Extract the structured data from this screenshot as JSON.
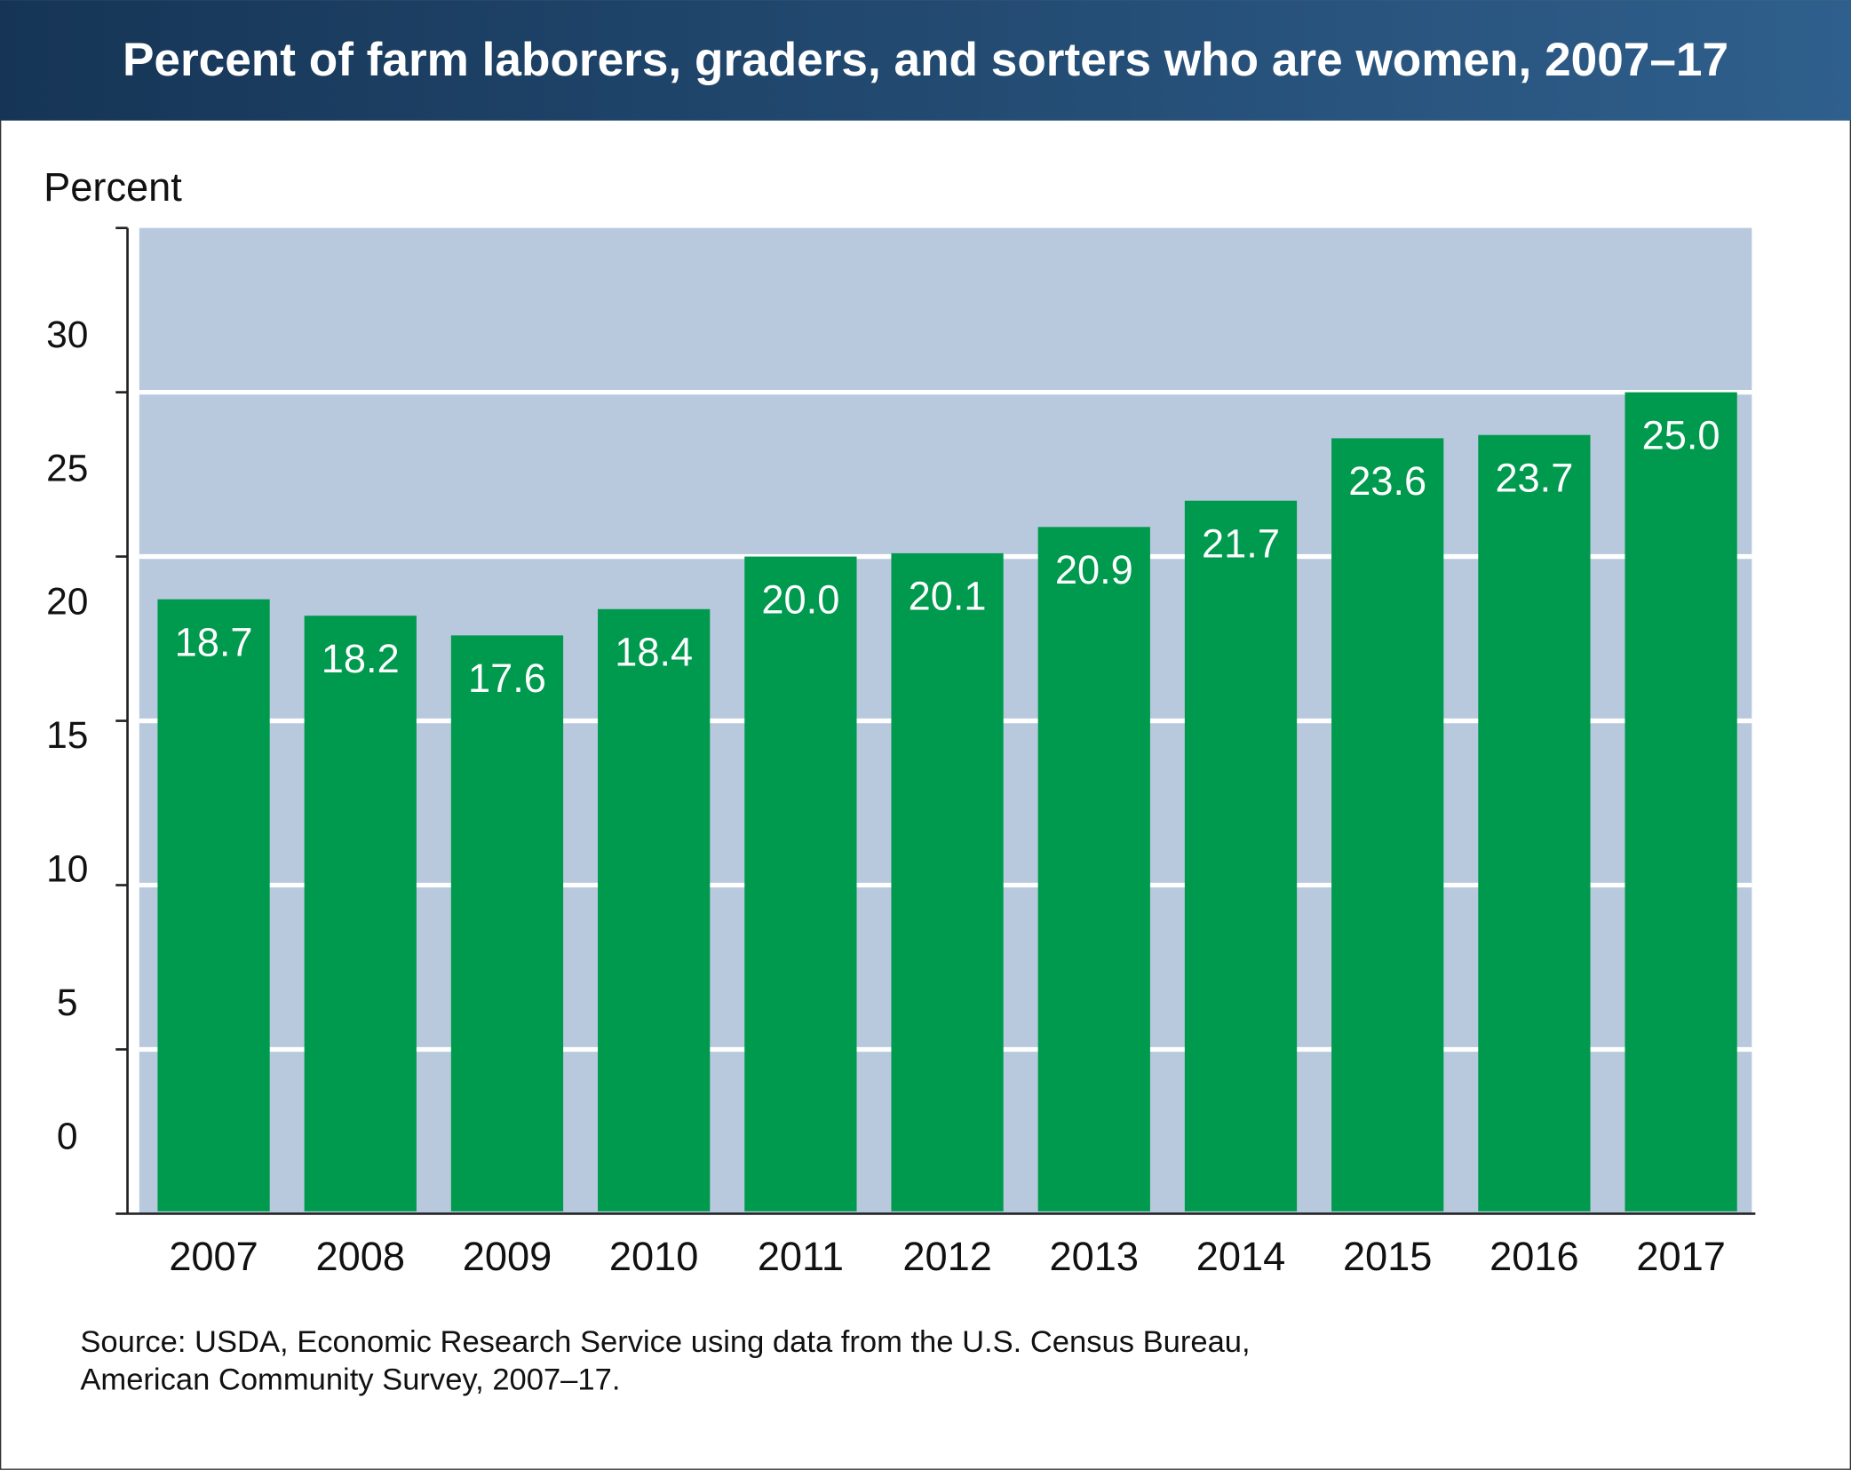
{
  "chart_data": {
    "type": "bar",
    "title": "Percent of farm laborers, graders, and sorters who are women, 2007–17",
    "ylabel": "Percent",
    "xlabel": "",
    "categories": [
      "2007",
      "2008",
      "2009",
      "2010",
      "2011",
      "2012",
      "2013",
      "2014",
      "2015",
      "2016",
      "2017"
    ],
    "values": [
      18.7,
      18.2,
      17.6,
      18.4,
      20.0,
      20.1,
      20.9,
      21.7,
      23.6,
      23.7,
      25.0
    ],
    "value_labels": [
      "18.7",
      "18.2",
      "17.6",
      "18.4",
      "20.0",
      "20.1",
      "20.9",
      "21.7",
      "23.6",
      "23.7",
      "25.0"
    ],
    "ylim": [
      0,
      30
    ],
    "yticks": [
      0,
      5,
      10,
      15,
      20,
      25,
      30
    ],
    "ytick_labels": [
      "0",
      "5",
      "10",
      "15",
      "20",
      "25",
      "30"
    ],
    "grid": true,
    "source": [
      "Source: USDA, Economic Research Service using data from the U.S. Census Bureau,",
      "American Community Survey, 2007–17."
    ]
  },
  "colors": {
    "bar": "#009a4e",
    "plot_bg": "#b8c9de",
    "title_bg_start": "#163556",
    "title_bg_end": "#2f5f8c"
  }
}
